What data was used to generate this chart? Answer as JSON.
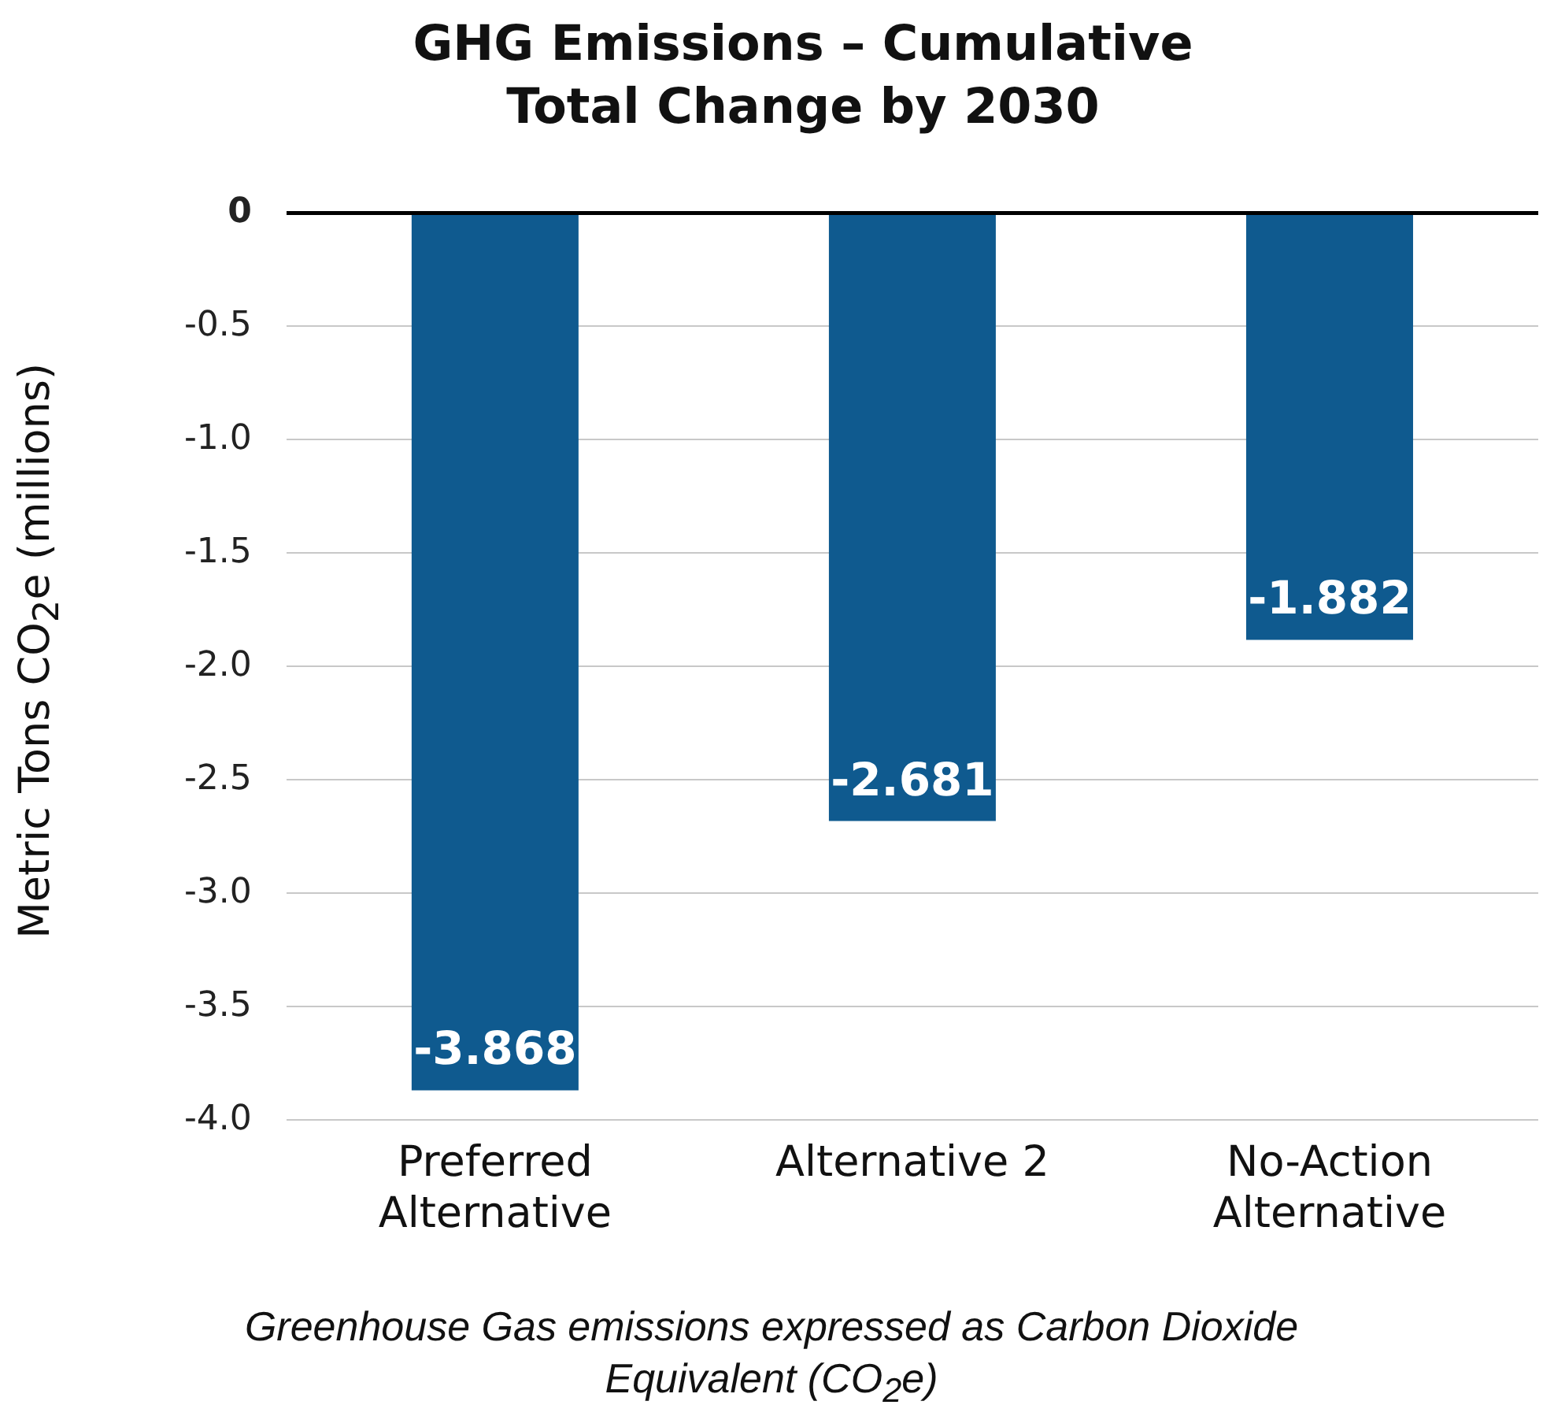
{
  "chart_data": {
    "type": "bar",
    "title": "GHG Emissions – Cumulative Total Change by 2030",
    "ylabel": "Metric Tons CO$_{2}$e (millions)",
    "annotations": [
      "Greenhouse Gas emissions expressed as Carbon Dioxide Equivalent (CO$_{2}$e)"
    ],
    "categories": [
      "Preferred Alternative",
      "Alternative 2",
      "No-Action Alternative"
    ],
    "values": [
      -3.868,
      -2.681,
      -1.882
    ],
    "color": "#0f5a8f",
    "ylim": [
      -4,
      0
    ],
    "yticks": [
      0,
      {
        "value": -0.5,
        "label": "-0.5"
      },
      {
        "value": -1,
        "label": "-1.0"
      },
      {
        "value": -1.5,
        "label": "-1.5"
      },
      {
        "value": -2,
        "label": "-2.0"
      },
      {
        "value": -2.5,
        "label": "-2.5"
      },
      {
        "value": -3,
        "label": "-3.0"
      },
      {
        "value": -3.5,
        "label": "-3.5"
      },
      {
        "value": -4,
        "label": "-4.0"
      }
    ],
    "grid": "y",
    "data_labels": true
  }
}
